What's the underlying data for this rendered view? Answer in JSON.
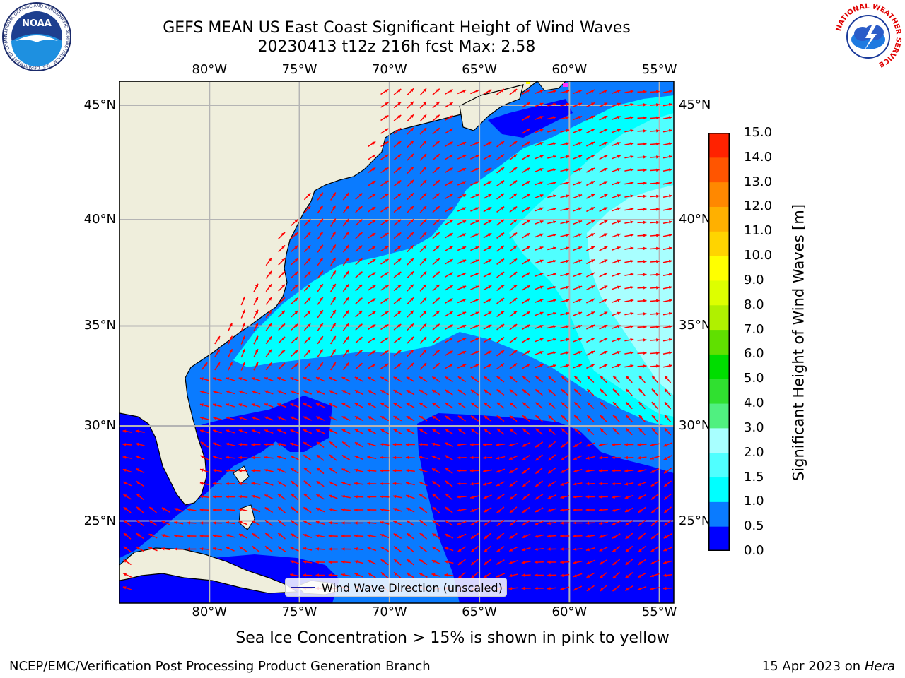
{
  "header": {
    "title_line1": "GEFS MEAN US East Coast Significant Height of Wind Waves",
    "title_line2": "20230413 t12z 216h fcst   Max: 2.58"
  },
  "logos": {
    "noaa_text": "NOAA",
    "noaa_ring": "NATIONAL OCEANIC AND ATMOSPHERIC ADMINISTRATION · U.S. DEPARTMENT OF COMMERCE",
    "nws_ring": "NATIONAL WEATHER SERVICE"
  },
  "map": {
    "lon_range": [
      -85,
      -54.2
    ],
    "lat_range": [
      20.5,
      46
    ],
    "lon_ticks": [
      "80°W",
      "75°W",
      "70°W",
      "65°W",
      "60°W",
      "55°W"
    ],
    "lon_tick_values": [
      -80,
      -75,
      -70,
      -65,
      -60,
      -55
    ],
    "lat_ticks": [
      "45°N",
      "40°N",
      "35°N",
      "30°N",
      "25°N"
    ],
    "lat_tick_values": [
      45,
      40,
      35,
      30,
      25
    ],
    "land_color": "#efeedc",
    "gridline_color": "#b4b4b4",
    "arrow_color": "#ff0000"
  },
  "colorbar": {
    "title": "Significant Height of Wind Waves [m]",
    "levels": [
      "0.0",
      "0.5",
      "1.0",
      "1.5",
      "2.0",
      "3.0",
      "4.0",
      "5.0",
      "6.0",
      "7.0",
      "8.0",
      "9.0",
      "10.0",
      "11.0",
      "12.0",
      "13.0",
      "14.0",
      "15.0"
    ],
    "colors": [
      "#0000ff",
      "#0a7bff",
      "#00ffff",
      "#50ffff",
      "#a8ffff",
      "#50f080",
      "#30e030",
      "#00dd00",
      "#60e000",
      "#b0f000",
      "#ddff00",
      "#ffff00",
      "#ffd400",
      "#ffb000",
      "#ff8800",
      "#ff5500",
      "#ff2200"
    ]
  },
  "legend": {
    "label": "Wind Wave Direction (unscaled)"
  },
  "footer": {
    "note": "Sea Ice Concentration > 15% is shown in pink to yellow",
    "left": "NCEP/EMC/Verification Post Processing Product Generation Branch",
    "date": "15 Apr 2023 on ",
    "host": "Hera"
  }
}
